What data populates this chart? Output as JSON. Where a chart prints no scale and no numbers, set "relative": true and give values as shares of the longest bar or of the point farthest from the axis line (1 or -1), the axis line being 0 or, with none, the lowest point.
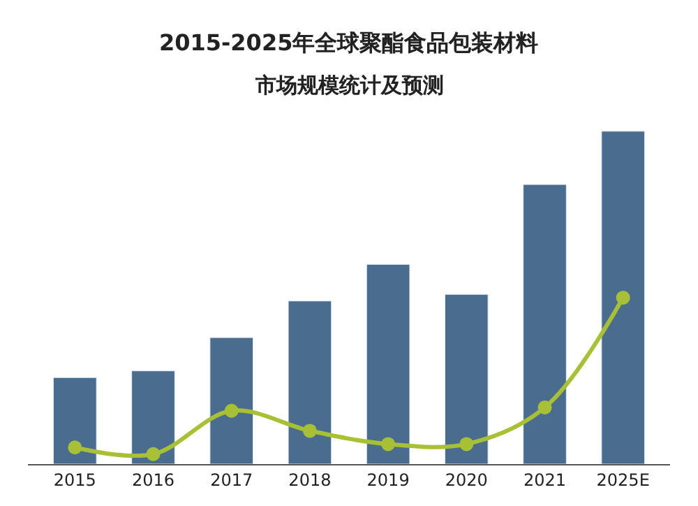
{
  "chart_data": {
    "type": "bar",
    "title": "2015-2025年全球聚酯食品包装材料",
    "subtitle": "市场规模统计及预测",
    "relative": true,
    "categories": [
      "2015",
      "2016",
      "2017",
      "2018",
      "2019",
      "2020",
      "2021",
      "2025E"
    ],
    "series": [
      {
        "color": "#4a6d8f",
        "values": [
          0.26,
          0.28,
          0.38,
          0.49,
          0.6,
          0.51,
          0.84,
          1.0
        ]
      },
      {
        "type": "line",
        "color": "#a8c035",
        "values": [
          0.05,
          0.03,
          0.16,
          0.1,
          0.06,
          0.06,
          0.17,
          0.5
        ],
        "marker": "circle",
        "line_style": "solid"
      }
    ]
  }
}
